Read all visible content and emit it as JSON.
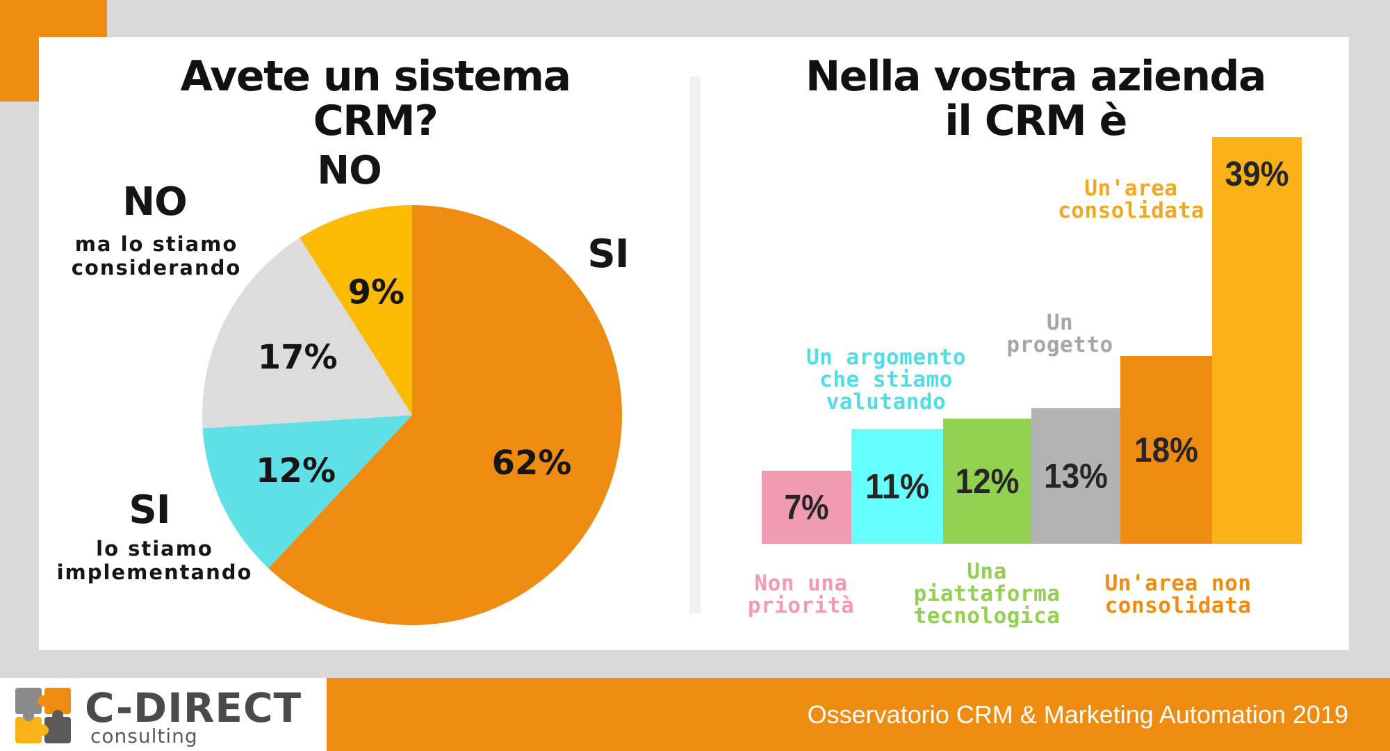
{
  "left_chart": {
    "title": "Avete un sistema\nCRM?",
    "labels": {
      "si_big": "SI",
      "no_big": "NO",
      "no_cons_big": "NO",
      "no_cons_small": "ma lo stiamo\nconsiderando",
      "si_impl_big": "SI",
      "si_impl_small": "lo stiamo\nimplementando"
    }
  },
  "right_chart": {
    "title": "Nella vostra azienda\nil CRM è",
    "category_labels": [
      "Non una\npriorità",
      "Un argomento\nche stiamo\nvalutando",
      "Una\npiattaforma\ntecnologica",
      "Un\nprogetto",
      "Un'area  non\nconsolidata",
      "Un'area\nconsolidata"
    ]
  },
  "chart_data": [
    {
      "type": "pie",
      "title": "Avete un sistema CRM?",
      "slices": [
        {
          "label": "SI",
          "value": 62,
          "value_label": "62%",
          "color": "#ee8b11"
        },
        {
          "label": "SI lo stiamo implementando",
          "value": 12,
          "value_label": "12%",
          "color": "#5ee0e6"
        },
        {
          "label": "NO ma lo stiamo considerando",
          "value": 17,
          "value_label": "17%",
          "color": "#dcdcdc"
        },
        {
          "label": "NO",
          "value": 9,
          "value_label": "9%",
          "color": "#fcba03"
        }
      ]
    },
    {
      "type": "bar",
      "title": "Nella vostra azienda il CRM è",
      "categories": [
        "Non una priorità",
        "Un argomento che stiamo valutando",
        "Una piattaforma tecnologica",
        "Un progetto",
        "Un'area non consolidata",
        "Un'area consolidata"
      ],
      "values": [
        7,
        11,
        12,
        13,
        18,
        39
      ],
      "value_labels": [
        "7%",
        "11%",
        "12%",
        "13%",
        "18%",
        "39%"
      ],
      "colors": [
        "#f19bb3",
        "#66ffff",
        "#92d050",
        "#b3b3b3",
        "#ee8b11",
        "#fbb217"
      ],
      "label_colors": [
        "#f19bb3",
        "#4fdde8",
        "#92d050",
        "#a6a6a6",
        "#ee8b11",
        "#f0a823"
      ],
      "ylim": [
        0,
        44
      ]
    }
  ],
  "footer": {
    "brand_name": "C-DIRECT",
    "brand_sub": "consulting",
    "caption": "Osservatorio CRM & Marketing Automation 2019",
    "logo_colors": [
      "#ee8b11",
      "#8a8a8a",
      "#fbb217",
      "#5a5a5a"
    ]
  }
}
